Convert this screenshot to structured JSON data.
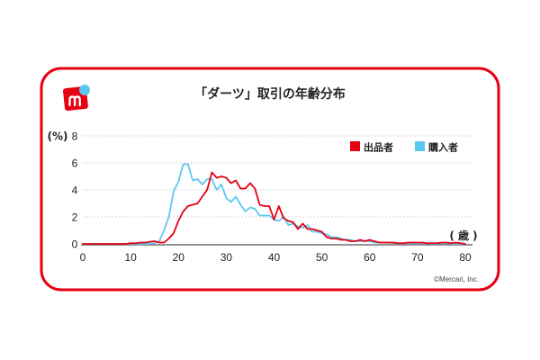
{
  "chart_data": {
    "type": "line",
    "title": "「ダーツ」取引の年齢分布",
    "ylabel": "(%)",
    "xlabel": "( 歳 )",
    "xlim": [
      0,
      80
    ],
    "ylim": [
      0,
      8
    ],
    "xticks": [
      0,
      10,
      20,
      30,
      40,
      50,
      60,
      70,
      80
    ],
    "yticks": [
      0,
      2,
      4,
      6,
      8
    ],
    "grid": true,
    "legend_position": "top-right",
    "x": [
      0,
      1,
      2,
      3,
      4,
      5,
      6,
      7,
      8,
      9,
      10,
      11,
      12,
      13,
      14,
      15,
      16,
      17,
      18,
      19,
      20,
      21,
      22,
      23,
      24,
      25,
      26,
      27,
      28,
      29,
      30,
      31,
      32,
      33,
      34,
      35,
      36,
      37,
      38,
      39,
      40,
      41,
      42,
      43,
      44,
      45,
      46,
      47,
      48,
      49,
      50,
      51,
      52,
      53,
      54,
      55,
      56,
      57,
      58,
      59,
      60,
      61,
      62,
      63,
      64,
      65,
      66,
      67,
      68,
      69,
      70,
      71,
      72,
      73,
      74,
      75,
      76,
      77,
      78,
      79,
      80
    ],
    "series": [
      {
        "name": "出品者",
        "color": "#e60012",
        "values": [
          0,
          0,
          0,
          0,
          0,
          0,
          0,
          0,
          0,
          0,
          0.05,
          0.05,
          0.1,
          0.1,
          0.15,
          0.2,
          0.1,
          0.1,
          0.4,
          0.8,
          1.7,
          2.4,
          2.8,
          2.9,
          3.0,
          3.5,
          4.0,
          5.3,
          4.9,
          5.0,
          4.9,
          4.5,
          4.7,
          4.1,
          4.1,
          4.5,
          4.1,
          2.9,
          2.8,
          2.8,
          1.8,
          2.8,
          1.9,
          1.7,
          1.6,
          1.1,
          1.5,
          1.1,
          1.1,
          1.0,
          0.9,
          0.5,
          0.4,
          0.4,
          0.3,
          0.3,
          0.2,
          0.2,
          0.3,
          0.2,
          0.3,
          0.2,
          0.1,
          0.1,
          0.1,
          0.1,
          0.05,
          0.05,
          0.1,
          0.1,
          0.1,
          0.1,
          0.05,
          0.05,
          0.05,
          0.1,
          0.1,
          0.05,
          0.1,
          0.05,
          0
        ]
      },
      {
        "name": "購入者",
        "color": "#5bc8f0",
        "values": [
          0,
          0,
          0,
          0,
          0,
          0,
          0,
          0,
          0,
          0,
          0,
          0,
          0,
          0,
          0,
          0.05,
          0.2,
          1.0,
          2.0,
          3.9,
          4.6,
          5.9,
          5.9,
          4.7,
          4.8,
          4.4,
          4.8,
          4.8,
          4.0,
          4.4,
          3.4,
          3.1,
          3.5,
          2.9,
          2.4,
          2.7,
          2.6,
          2.1,
          2.1,
          2.1,
          1.8,
          1.7,
          2.0,
          1.4,
          1.5,
          1.3,
          1.2,
          1.4,
          0.9,
          0.9,
          0.8,
          0.7,
          0.5,
          0.5,
          0.4,
          0.3,
          0.3,
          0.2,
          0.2,
          0.2,
          0.2,
          0.1,
          0.1,
          0.1,
          0.1,
          0.05,
          0.05,
          0.05,
          0.05,
          0.05,
          0.05,
          0.05,
          0.05,
          0,
          0,
          0.05,
          0.05,
          0,
          0,
          0,
          0
        ]
      }
    ]
  },
  "logo": {
    "icon": "mercari-logo-icon"
  },
  "copyright": "©Mercari, Inc.",
  "colors": {
    "frame": "#e60012",
    "logo_red": "#e60012",
    "logo_blue": "#5bc8f0"
  }
}
